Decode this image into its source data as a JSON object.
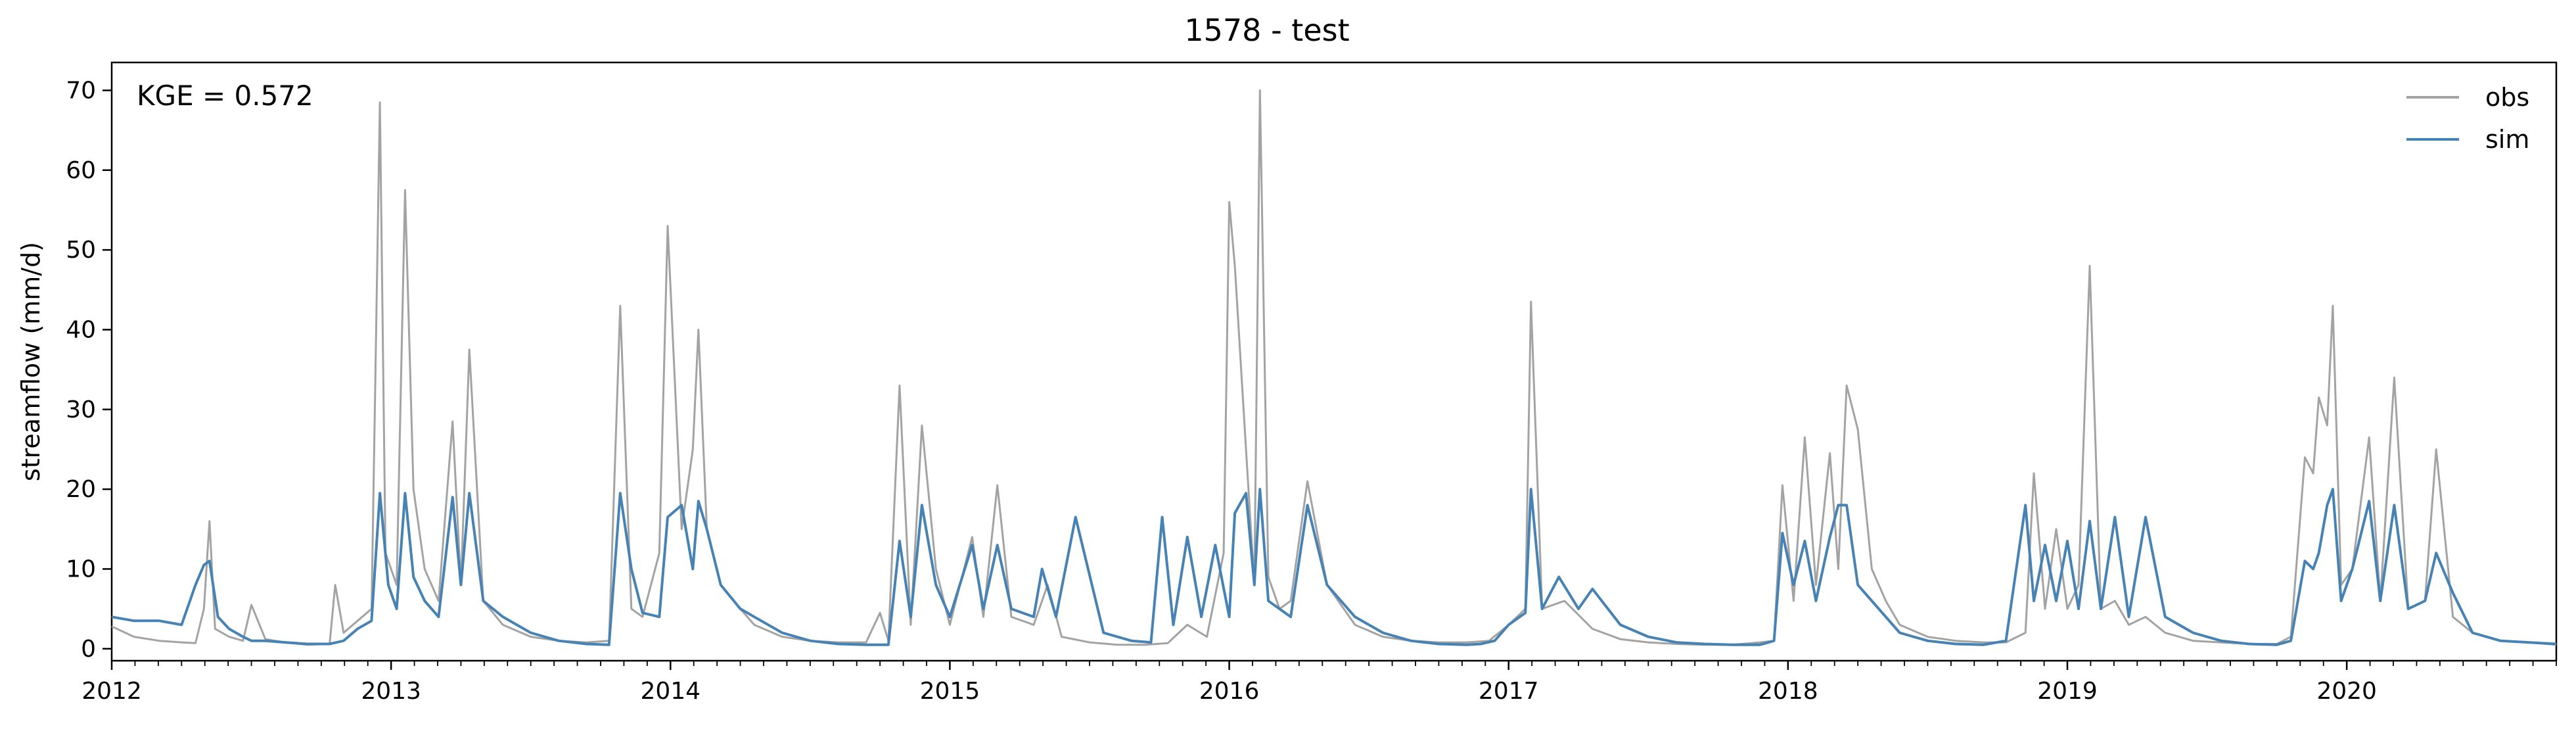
{
  "chart_data": {
    "type": "line",
    "title": "1578 - test",
    "xlabel": "",
    "ylabel": "streamflow (mm/d)",
    "annotation": "KGE = 0.572",
    "xlim": [
      2012.0,
      2020.75
    ],
    "ylim": [
      -1.5,
      73.5
    ],
    "x_ticks": [
      "2012",
      "2013",
      "2014",
      "2015",
      "2016",
      "2017",
      "2018",
      "2019",
      "2020"
    ],
    "y_ticks": [
      "0",
      "10",
      "20",
      "30",
      "40",
      "50",
      "60",
      "70"
    ],
    "grid": false,
    "legend": {
      "position": "top-right",
      "entries": [
        "obs",
        "sim"
      ]
    },
    "colors": {
      "obs": "#a3a3a3",
      "sim": "#4682b4"
    },
    "series": [
      {
        "name": "obs",
        "x": [
          2012.0,
          2012.08,
          2012.17,
          2012.25,
          2012.3,
          2012.33,
          2012.35,
          2012.37,
          2012.42,
          2012.47,
          2012.5,
          2012.55,
          2012.62,
          2012.7,
          2012.78,
          2012.8,
          2012.83,
          2012.88,
          2012.93,
          2012.96,
          2012.98,
          2013.02,
          2013.05,
          2013.08,
          2013.12,
          2013.17,
          2013.22,
          2013.25,
          2013.28,
          2013.33,
          2013.4,
          2013.5,
          2013.6,
          2013.7,
          2013.78,
          2013.82,
          2013.86,
          2013.9,
          2013.96,
          2013.99,
          2014.04,
          2014.08,
          2014.1,
          2014.13,
          2014.18,
          2014.25,
          2014.3,
          2014.4,
          2014.5,
          2014.6,
          2014.7,
          2014.75,
          2014.78,
          2014.82,
          2014.86,
          2014.9,
          2014.95,
          2015.0,
          2015.08,
          2015.12,
          2015.17,
          2015.22,
          2015.3,
          2015.35,
          2015.4,
          2015.5,
          2015.6,
          2015.7,
          2015.78,
          2015.85,
          2015.92,
          2015.98,
          2016.0,
          2016.02,
          2016.06,
          2016.09,
          2016.11,
          2016.14,
          2016.18,
          2016.22,
          2016.28,
          2016.35,
          2016.45,
          2016.55,
          2016.65,
          2016.75,
          2016.85,
          2016.93,
          2017.0,
          2017.06,
          2017.08,
          2017.12,
          2017.2,
          2017.3,
          2017.4,
          2017.5,
          2017.6,
          2017.7,
          2017.8,
          2017.9,
          2017.95,
          2017.98,
          2018.02,
          2018.06,
          2018.1,
          2018.15,
          2018.18,
          2018.21,
          2018.25,
          2018.3,
          2018.35,
          2018.4,
          2018.5,
          2018.6,
          2018.7,
          2018.78,
          2018.85,
          2018.88,
          2018.92,
          2018.96,
          2019.0,
          2019.04,
          2019.08,
          2019.12,
          2019.17,
          2019.22,
          2019.28,
          2019.35,
          2019.45,
          2019.55,
          2019.65,
          2019.75,
          2019.8,
          2019.85,
          2019.88,
          2019.9,
          2019.93,
          2019.95,
          2019.98,
          2020.02,
          2020.08,
          2020.12,
          2020.17,
          2020.22,
          2020.28,
          2020.32,
          2020.38,
          2020.45,
          2020.55,
          2020.65,
          2020.75
        ],
        "y": [
          2.8,
          1.5,
          1.0,
          0.8,
          0.7,
          5.0,
          16.0,
          2.5,
          1.5,
          1.0,
          5.5,
          1.2,
          0.8,
          0.5,
          0.6,
          8.0,
          2.0,
          3.5,
          5.0,
          68.5,
          12.0,
          8.0,
          57.5,
          20.0,
          10.0,
          6.0,
          28.5,
          8.0,
          37.5,
          6.0,
          3.0,
          1.5,
          1.0,
          0.8,
          1.0,
          43.0,
          5.0,
          4.0,
          12.0,
          53.0,
          15.0,
          25.0,
          40.0,
          15.0,
          8.0,
          5.0,
          3.0,
          1.5,
          1.0,
          0.8,
          0.8,
          4.5,
          1.0,
          33.0,
          3.0,
          28.0,
          10.0,
          3.0,
          14.0,
          4.0,
          20.5,
          4.0,
          3.0,
          8.0,
          1.5,
          0.8,
          0.5,
          0.5,
          0.7,
          3.0,
          1.5,
          12.0,
          56.0,
          48.0,
          25.0,
          8.0,
          70.0,
          9.0,
          5.0,
          6.0,
          21.0,
          8.0,
          3.0,
          1.5,
          1.0,
          0.8,
          0.8,
          1.0,
          3.0,
          5.0,
          43.5,
          5.0,
          6.0,
          2.5,
          1.2,
          0.8,
          0.6,
          0.5,
          0.5,
          0.8,
          1.0,
          20.5,
          6.0,
          26.5,
          8.0,
          24.5,
          10.0,
          33.0,
          27.5,
          10.0,
          6.0,
          3.0,
          1.5,
          1.0,
          0.8,
          0.8,
          2.0,
          22.0,
          5.0,
          15.0,
          5.0,
          8.0,
          48.0,
          5.0,
          6.0,
          3.0,
          4.0,
          2.0,
          1.0,
          0.8,
          0.6,
          0.6,
          1.5,
          24.0,
          22.0,
          31.5,
          28.0,
          43.0,
          8.0,
          10.0,
          26.5,
          6.0,
          34.0,
          5.0,
          6.0,
          25.0,
          4.0,
          2.0,
          1.0,
          0.8,
          0.5
        ]
      },
      {
        "name": "sim",
        "x": [
          2012.0,
          2012.08,
          2012.17,
          2012.25,
          2012.3,
          2012.33,
          2012.35,
          2012.38,
          2012.42,
          2012.47,
          2012.5,
          2012.55,
          2012.62,
          2012.7,
          2012.78,
          2012.83,
          2012.88,
          2012.93,
          2012.96,
          2012.99,
          2013.02,
          2013.05,
          2013.08,
          2013.12,
          2013.17,
          2013.22,
          2013.25,
          2013.28,
          2013.33,
          2013.4,
          2013.5,
          2013.6,
          2013.7,
          2013.78,
          2013.82,
          2013.86,
          2013.9,
          2013.96,
          2013.99,
          2014.04,
          2014.08,
          2014.1,
          2014.13,
          2014.18,
          2014.25,
          2014.3,
          2014.4,
          2014.5,
          2014.6,
          2014.7,
          2014.78,
          2014.82,
          2014.86,
          2014.9,
          2014.95,
          2015.0,
          2015.08,
          2015.12,
          2015.17,
          2015.22,
          2015.3,
          2015.33,
          2015.38,
          2015.45,
          2015.55,
          2015.65,
          2015.72,
          2015.76,
          2015.8,
          2015.85,
          2015.9,
          2015.95,
          2016.0,
          2016.02,
          2016.06,
          2016.09,
          2016.11,
          2016.14,
          2016.18,
          2016.22,
          2016.28,
          2016.35,
          2016.45,
          2016.55,
          2016.65,
          2016.75,
          2016.85,
          2016.9,
          2016.95,
          2017.0,
          2017.06,
          2017.08,
          2017.12,
          2017.18,
          2017.25,
          2017.3,
          2017.4,
          2017.5,
          2017.6,
          2017.7,
          2017.8,
          2017.9,
          2017.95,
          2017.98,
          2018.02,
          2018.06,
          2018.1,
          2018.15,
          2018.18,
          2018.21,
          2018.25,
          2018.3,
          2018.35,
          2018.4,
          2018.5,
          2018.6,
          2018.7,
          2018.78,
          2018.85,
          2018.88,
          2018.92,
          2018.96,
          2019.0,
          2019.04,
          2019.08,
          2019.12,
          2019.17,
          2019.22,
          2019.28,
          2019.35,
          2019.45,
          2019.55,
          2019.65,
          2019.75,
          2019.8,
          2019.85,
          2019.88,
          2019.9,
          2019.93,
          2019.95,
          2019.98,
          2020.02,
          2020.08,
          2020.12,
          2020.17,
          2020.22,
          2020.28,
          2020.32,
          2020.38,
          2020.45,
          2020.55,
          2020.65,
          2020.75
        ],
        "y": [
          4.0,
          3.5,
          3.5,
          3.0,
          8.0,
          10.5,
          11.0,
          4.0,
          2.5,
          1.5,
          1.0,
          1.0,
          0.8,
          0.6,
          0.6,
          1.0,
          2.5,
          3.5,
          19.5,
          8.0,
          5.0,
          19.5,
          9.0,
          6.0,
          4.0,
          19.0,
          8.0,
          19.5,
          6.0,
          4.0,
          2.0,
          1.0,
          0.6,
          0.5,
          19.5,
          10.0,
          4.5,
          4.0,
          16.5,
          18.0,
          10.0,
          18.5,
          15.0,
          8.0,
          5.0,
          4.0,
          2.0,
          1.0,
          0.6,
          0.5,
          0.5,
          13.5,
          4.0,
          18.0,
          8.0,
          4.0,
          13.0,
          5.0,
          13.0,
          5.0,
          4.0,
          10.0,
          4.0,
          16.5,
          2.0,
          1.0,
          0.8,
          16.5,
          3.0,
          14.0,
          4.0,
          13.0,
          4.0,
          17.0,
          19.5,
          8.0,
          20.0,
          6.0,
          5.0,
          4.0,
          18.0,
          8.0,
          4.0,
          2.0,
          1.0,
          0.6,
          0.5,
          0.6,
          1.0,
          3.0,
          4.5,
          20.0,
          5.0,
          9.0,
          5.0,
          7.5,
          3.0,
          1.5,
          0.8,
          0.6,
          0.5,
          0.5,
          1.0,
          14.5,
          8.0,
          13.5,
          6.0,
          14.0,
          18.0,
          18.0,
          8.0,
          6.0,
          4.0,
          2.0,
          1.0,
          0.6,
          0.5,
          1.0,
          18.0,
          6.0,
          13.0,
          6.0,
          13.5,
          5.0,
          16.0,
          5.0,
          16.5,
          4.0,
          16.5,
          4.0,
          2.0,
          1.0,
          0.6,
          0.5,
          1.0,
          11.0,
          10.0,
          12.0,
          18.0,
          20.0,
          6.0,
          10.0,
          18.5,
          6.0,
          18.0,
          5.0,
          6.0,
          12.0,
          7.0,
          2.0,
          1.0,
          0.8,
          0.6
        ]
      }
    ]
  }
}
